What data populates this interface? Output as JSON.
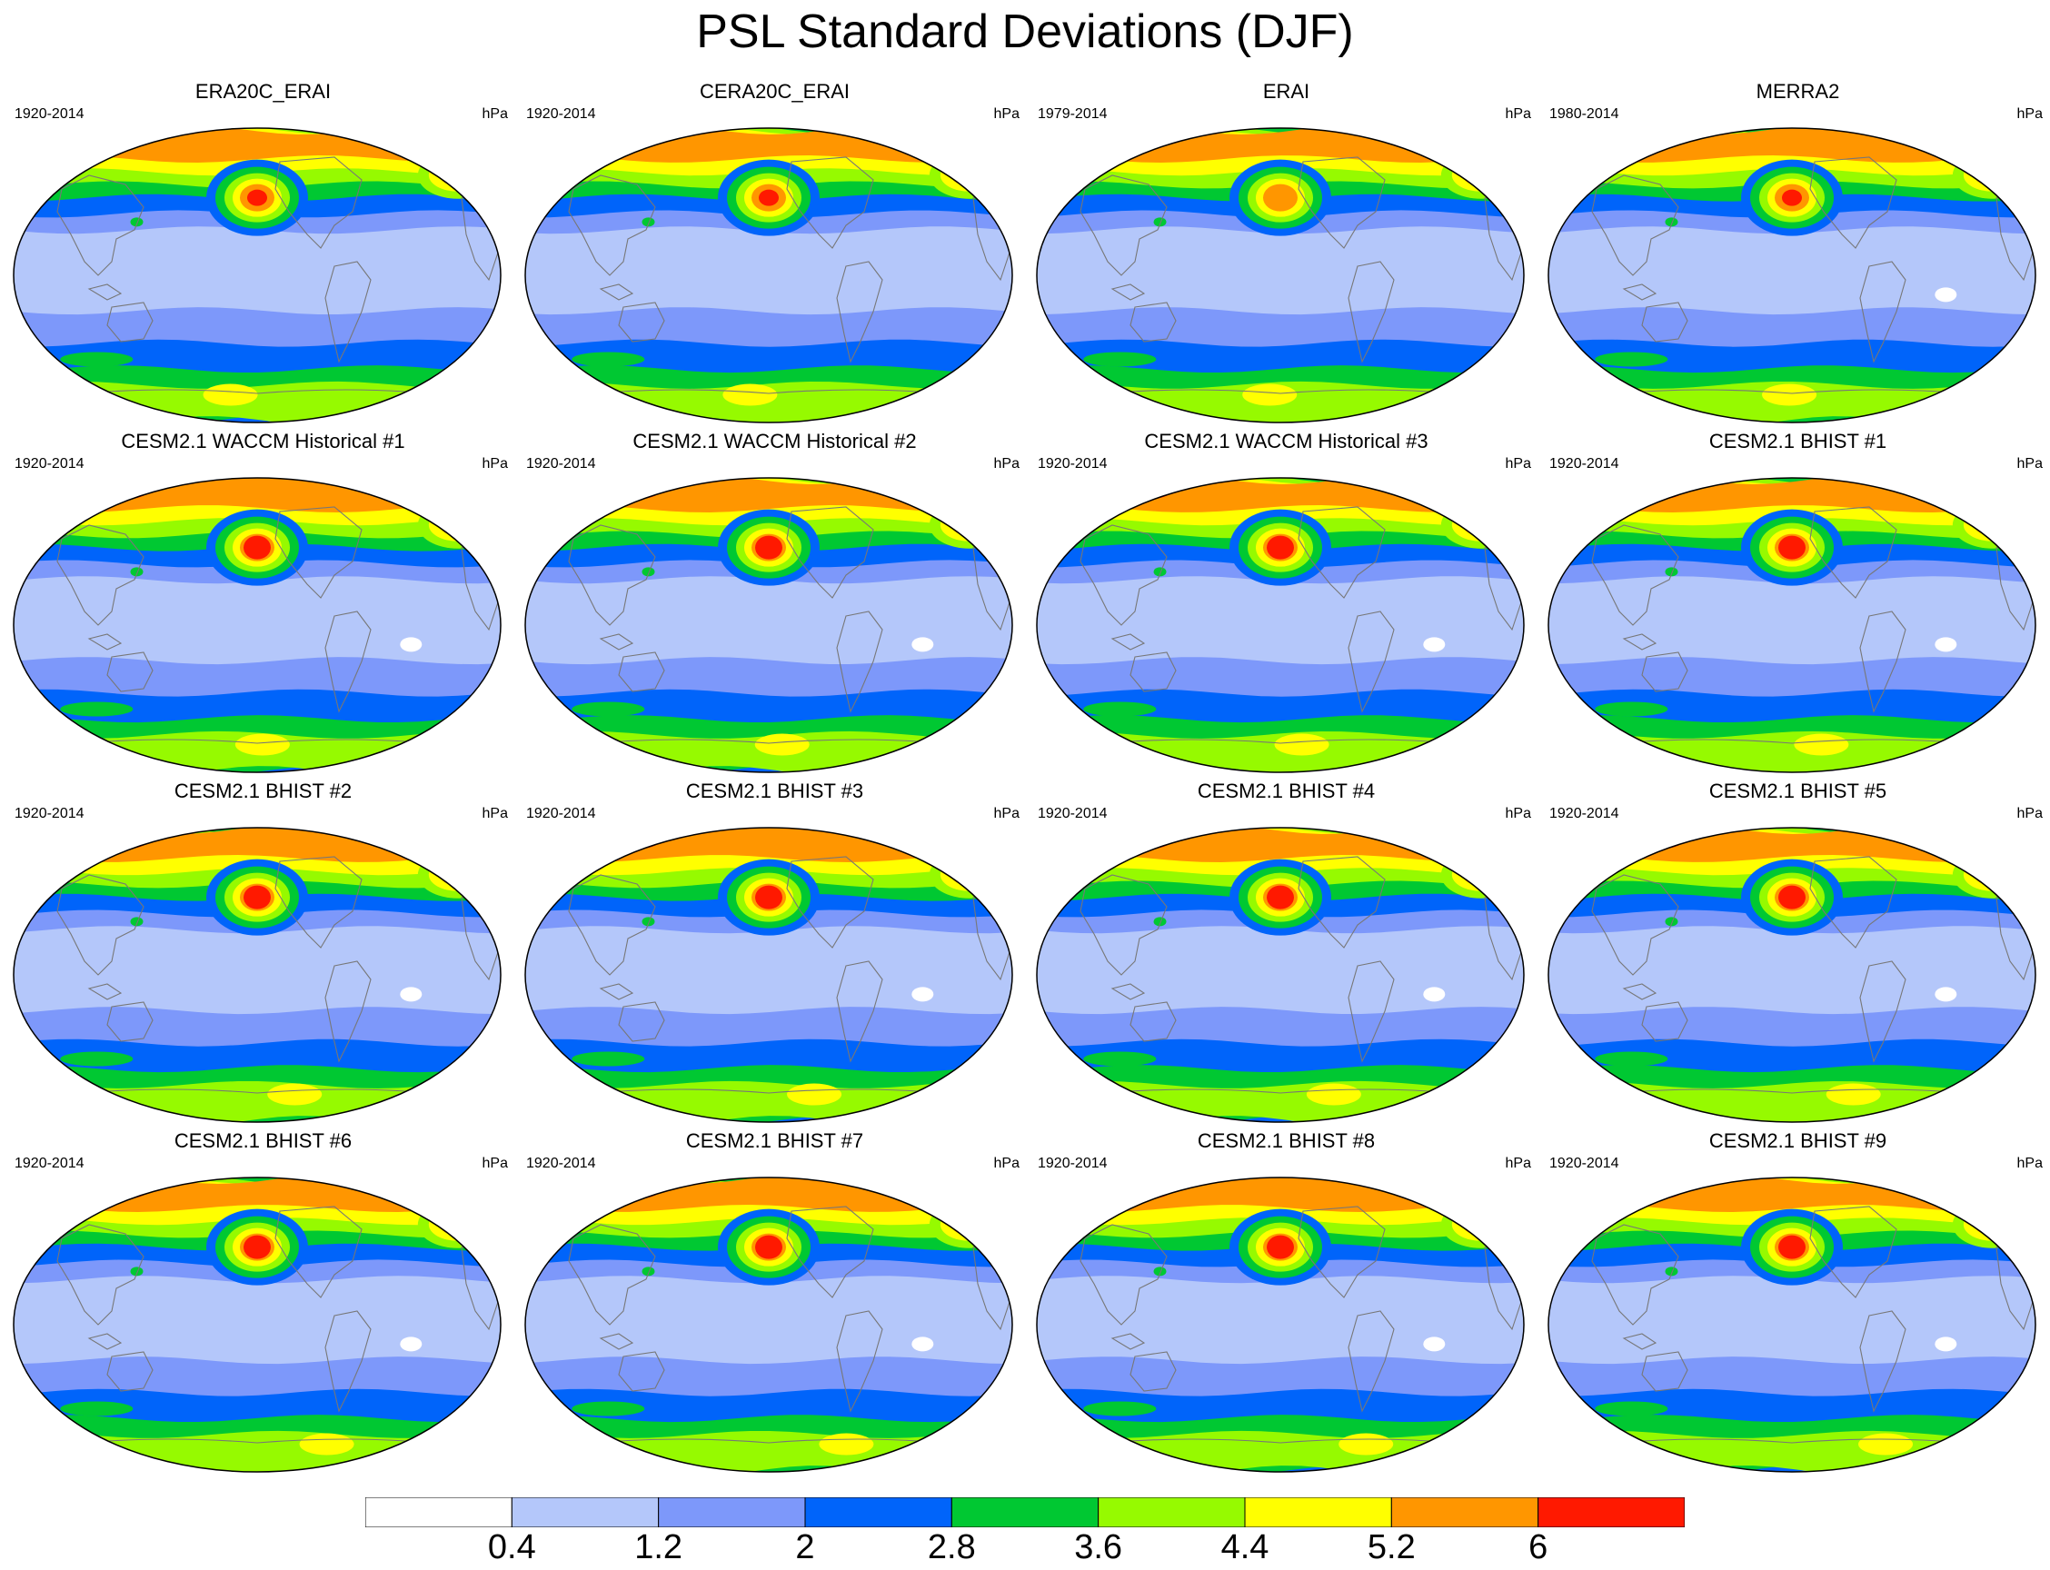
{
  "title": "PSL Standard Deviations (DJF)",
  "panels": [
    {
      "title": "ERA20C_ERAI",
      "left": "1920-2014",
      "right": "hPa"
    },
    {
      "title": "CERA20C_ERAI",
      "left": "1920-2014",
      "right": "hPa"
    },
    {
      "title": "ERAI",
      "left": "1979-2014",
      "right": "hPa"
    },
    {
      "title": "MERRA2",
      "left": "1980-2014",
      "right": "hPa"
    },
    {
      "title": "CESM2.1 WACCM Historical #1",
      "left": "1920-2014",
      "right": "hPa"
    },
    {
      "title": "CESM2.1 WACCM Historical #2",
      "left": "1920-2014",
      "right": "hPa"
    },
    {
      "title": "CESM2.1 WACCM Historical #3",
      "left": "1920-2014",
      "right": "hPa"
    },
    {
      "title": "CESM2.1 BHIST #1",
      "left": "1920-2014",
      "right": "hPa"
    },
    {
      "title": "CESM2.1 BHIST #2",
      "left": "1920-2014",
      "right": "hPa"
    },
    {
      "title": "CESM2.1 BHIST #3",
      "left": "1920-2014",
      "right": "hPa"
    },
    {
      "title": "CESM2.1 BHIST #4",
      "left": "1920-2014",
      "right": "hPa"
    },
    {
      "title": "CESM2.1 BHIST #5",
      "left": "1920-2014",
      "right": "hPa"
    },
    {
      "title": "CESM2.1 BHIST #6",
      "left": "1920-2014",
      "right": "hPa"
    },
    {
      "title": "CESM2.1 BHIST #7",
      "left": "1920-2014",
      "right": "hPa"
    },
    {
      "title": "CESM2.1 BHIST #8",
      "left": "1920-2014",
      "right": "hPa"
    },
    {
      "title": "CESM2.1 BHIST #9",
      "left": "1920-2014",
      "right": "hPa"
    }
  ],
  "colorbar": {
    "labels": [
      "0.4",
      "1.2",
      "2",
      "2.8",
      "3.6",
      "4.4",
      "5.2",
      "6"
    ],
    "colors": [
      "#ffffff",
      "#b4c7fa",
      "#7d98fa",
      "#0064fa",
      "#00c832",
      "#96fa00",
      "#ffff00",
      "#ff9600",
      "#ff1900"
    ]
  }
}
